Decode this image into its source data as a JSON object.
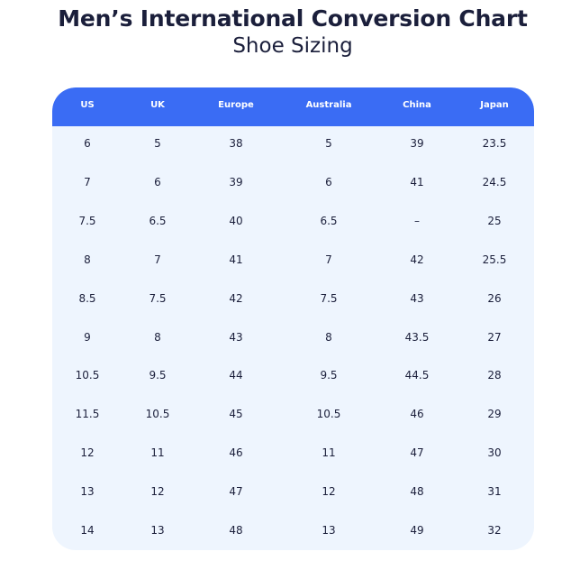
{
  "title": "Men’s International Conversion Chart",
  "subtitle": "Shoe Sizing",
  "table": {
    "headers": [
      "US",
      "UK",
      "Europe",
      "Australia",
      "China",
      "Japan"
    ],
    "rows": [
      [
        "6",
        "5",
        "38",
        "5",
        "39",
        "23.5"
      ],
      [
        "7",
        "6",
        "39",
        "6",
        "41",
        "24.5"
      ],
      [
        "7.5",
        "6.5",
        "40",
        "6.5",
        "–",
        "25"
      ],
      [
        "8",
        "7",
        "41",
        "7",
        "42",
        "25.5"
      ],
      [
        "8.5",
        "7.5",
        "42",
        "7.5",
        "43",
        "26"
      ],
      [
        "9",
        "8",
        "43",
        "8",
        "43.5",
        "27"
      ],
      [
        "10.5",
        "9.5",
        "44",
        "9.5",
        "44.5",
        "28"
      ],
      [
        "11.5",
        "10.5",
        "45",
        "10.5",
        "46",
        "29"
      ],
      [
        "12",
        "11",
        "46",
        "11",
        "47",
        "30"
      ],
      [
        "13",
        "12",
        "47",
        "12",
        "48",
        "31"
      ],
      [
        "14",
        "13",
        "48",
        "13",
        "49",
        "32"
      ]
    ]
  },
  "colors": {
    "header_bg": "#3a6cf4",
    "table_bg": "#eef5fe",
    "text": "#1b1f3b"
  }
}
